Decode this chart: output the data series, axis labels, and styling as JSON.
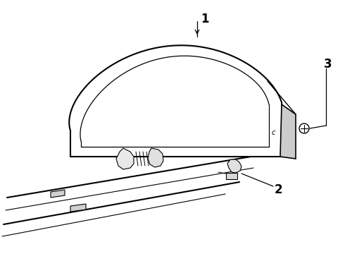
{
  "background_color": "#ffffff",
  "line_color": "#000000",
  "label_1": "1",
  "label_2": "2",
  "label_3": "3",
  "figsize": [
    4.9,
    3.6
  ],
  "dpi": 100
}
